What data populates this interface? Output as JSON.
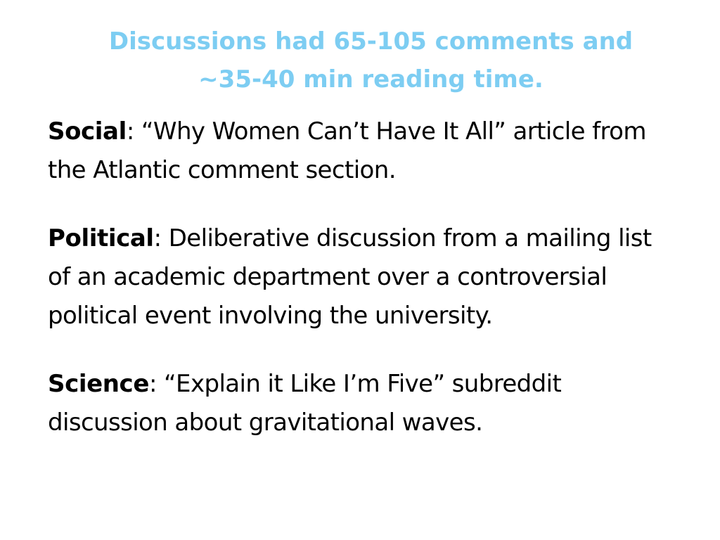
{
  "slide": {
    "title_lines": [
      "Discussions had 65-105 comments and",
      "~35-40 min reading time."
    ],
    "title_color": "#7dcdf2",
    "items": [
      {
        "label": "Social",
        "first_line": ": “Why Women Can’t Have It All” article from",
        "lines": [
          "the Atlantic comment section."
        ]
      },
      {
        "label": "Political",
        "first_line": ": Deliberative discussion from a mailing list",
        "lines": [
          "of an academic department over a controversial",
          "political event involving the university."
        ]
      },
      {
        "label": "Science",
        "first_line": ": “Explain it Like I’m Five” subreddit",
        "lines": [
          "discussion about gravitational waves."
        ]
      }
    ]
  }
}
